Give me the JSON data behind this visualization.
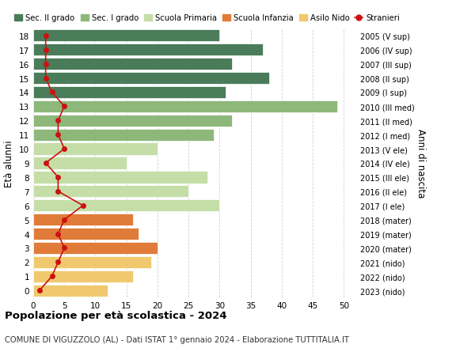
{
  "ages": [
    18,
    17,
    16,
    15,
    14,
    13,
    12,
    11,
    10,
    9,
    8,
    7,
    6,
    5,
    4,
    3,
    2,
    1,
    0
  ],
  "bar_values": [
    30,
    37,
    32,
    38,
    31,
    49,
    32,
    29,
    20,
    15,
    28,
    25,
    30,
    16,
    17,
    20,
    19,
    16,
    12
  ],
  "bar_colors": [
    "#4a7c59",
    "#4a7c59",
    "#4a7c59",
    "#4a7c59",
    "#4a7c59",
    "#8db87a",
    "#8db87a",
    "#8db87a",
    "#c5dea8",
    "#c5dea8",
    "#c5dea8",
    "#c5dea8",
    "#c5dea8",
    "#e07b39",
    "#e07b39",
    "#e07b39",
    "#f0c96e",
    "#f0c96e",
    "#f0c96e"
  ],
  "stranieri_values": [
    2,
    2,
    2,
    2,
    3,
    5,
    4,
    4,
    5,
    2,
    4,
    4,
    8,
    5,
    4,
    5,
    4,
    3,
    1
  ],
  "right_labels": [
    "2005 (V sup)",
    "2006 (IV sup)",
    "2007 (III sup)",
    "2008 (II sup)",
    "2009 (I sup)",
    "2010 (III med)",
    "2011 (II med)",
    "2012 (I med)",
    "2013 (V ele)",
    "2014 (IV ele)",
    "2015 (III ele)",
    "2016 (II ele)",
    "2017 (I ele)",
    "2018 (mater)",
    "2019 (mater)",
    "2020 (mater)",
    "2021 (nido)",
    "2022 (nido)",
    "2023 (nido)"
  ],
  "legend_labels": [
    "Sec. II grado",
    "Sec. I grado",
    "Scuola Primaria",
    "Scuola Infanzia",
    "Asilo Nido",
    "Stranieri"
  ],
  "legend_colors": [
    "#4a7c59",
    "#8db87a",
    "#c5dea8",
    "#e07b39",
    "#f0c96e",
    "#cc1111"
  ],
  "stranieri_color": "#cc1111",
  "ylabel": "Età alunni",
  "ylabel_right": "Anni di nascita",
  "title": "Popolazione per età scolastica - 2024",
  "subtitle": "COMUNE DI VIGUZZOLO (AL) - Dati ISTAT 1° gennaio 2024 - Elaborazione TUTTITALIA.IT",
  "xlim": [
    0,
    52
  ],
  "background_color": "#ffffff",
  "grid_color": "#cccccc"
}
